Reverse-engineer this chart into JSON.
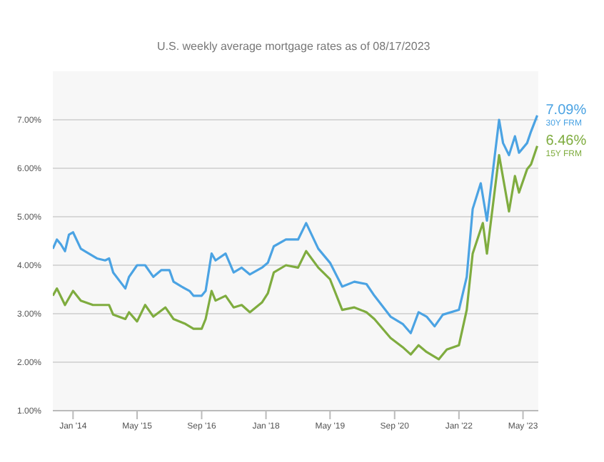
{
  "chart_data": {
    "type": "line",
    "subtitle": "U.S. weekly average mortgage rates as of 08/17/2023",
    "xlim": [
      "2013-08-01",
      "2023-08-25"
    ],
    "xticks": [
      {
        "value": "2014-01-01",
        "label": "Jan '14"
      },
      {
        "value": "2015-05-01",
        "label": "May '15"
      },
      {
        "value": "2016-09-01",
        "label": "Sep '16"
      },
      {
        "value": "2018-01-01",
        "label": "Jan '18"
      },
      {
        "value": "2019-05-01",
        "label": "May '19"
      },
      {
        "value": "2020-09-01",
        "label": "Sep '20"
      },
      {
        "value": "2022-01-01",
        "label": "Jan '22"
      },
      {
        "value": "2023-05-01",
        "label": "May '23"
      }
    ],
    "ylim": [
      1,
      8
    ],
    "yticks": [
      {
        "value": 1,
        "label": "1.00%"
      },
      {
        "value": 2,
        "label": "2.00%"
      },
      {
        "value": 3,
        "label": "3.00%"
      },
      {
        "value": 4,
        "label": "4.00%"
      },
      {
        "value": 5,
        "label": "5.00%"
      },
      {
        "value": 6,
        "label": "6.00%"
      },
      {
        "value": 7,
        "label": "7.00%"
      }
    ],
    "grid": "y",
    "marker": "none",
    "line_style": "solid",
    "series": [
      {
        "name": "30Y FRM",
        "color": "#4ba3e3",
        "x": [
          "2013-08-01",
          "2013-09-01",
          "2013-10-01",
          "2013-11-01",
          "2013-12-01",
          "2014-01-01",
          "2014-03-01",
          "2014-04-01",
          "2014-07-01",
          "2014-09-01",
          "2014-10-01",
          "2014-11-01",
          "2015-02-01",
          "2015-03-01",
          "2015-05-01",
          "2015-07-01",
          "2015-09-01",
          "2015-11-01",
          "2016-01-01",
          "2016-02-01",
          "2016-04-01",
          "2016-06-01",
          "2016-07-01",
          "2016-09-01",
          "2016-10-01",
          "2016-11-15",
          "2016-12-15",
          "2017-03-01",
          "2017-05-01",
          "2017-07-01",
          "2017-09-01",
          "2017-12-01",
          "2018-01-15",
          "2018-03-01",
          "2018-06-01",
          "2018-09-01",
          "2018-11-01",
          "2019-02-01",
          "2019-05-01",
          "2019-08-01",
          "2019-11-01",
          "2020-02-01",
          "2020-04-01",
          "2020-08-01",
          "2020-11-01",
          "2021-01-01",
          "2021-03-01",
          "2021-05-01",
          "2021-07-01",
          "2021-09-01",
          "2022-01-01",
          "2022-03-01",
          "2022-04-15",
          "2022-06-15",
          "2022-08-01",
          "2022-11-01",
          "2022-12-01",
          "2023-01-15",
          "2023-03-01",
          "2023-04-01",
          "2023-06-01",
          "2023-07-01",
          "2023-08-17"
        ],
        "values": [
          4.34,
          4.53,
          4.43,
          4.29,
          4.63,
          4.68,
          4.34,
          4.29,
          4.14,
          4.1,
          4.14,
          3.85,
          3.52,
          3.76,
          4.0,
          4.0,
          3.76,
          3.9,
          3.9,
          3.66,
          3.56,
          3.47,
          3.37,
          3.37,
          3.47,
          4.24,
          4.1,
          4.24,
          3.85,
          3.95,
          3.81,
          3.95,
          4.05,
          4.39,
          4.53,
          4.53,
          4.87,
          4.34,
          4.05,
          3.56,
          3.66,
          3.61,
          3.37,
          2.94,
          2.79,
          2.6,
          3.03,
          2.94,
          2.74,
          2.98,
          3.08,
          3.76,
          5.16,
          5.69,
          4.92,
          7.0,
          6.52,
          6.27,
          6.66,
          6.32,
          6.52,
          6.76,
          7.09
        ],
        "value_labels": [
          null,
          null,
          null,
          null,
          null,
          null,
          null,
          null,
          null,
          null,
          null,
          null,
          null,
          null,
          null,
          null,
          null,
          null,
          null,
          null,
          null,
          null,
          null,
          null,
          null,
          null,
          null,
          null,
          null,
          null,
          null,
          null,
          null,
          null,
          null,
          null,
          null,
          null,
          null,
          null,
          null,
          null,
          null,
          null,
          null,
          null,
          null,
          null,
          null,
          null,
          null,
          null,
          null,
          null,
          null,
          null,
          null,
          null,
          null,
          null,
          null,
          null,
          "7.09%"
        ]
      },
      {
        "name": "15Y FRM",
        "color": "#7fac3f",
        "x": [
          "2013-08-01",
          "2013-09-01",
          "2013-11-01",
          "2014-01-01",
          "2014-03-01",
          "2014-06-01",
          "2014-10-01",
          "2014-11-01",
          "2015-02-01",
          "2015-03-01",
          "2015-05-01",
          "2015-07-01",
          "2015-09-01",
          "2015-12-01",
          "2016-02-01",
          "2016-05-01",
          "2016-07-01",
          "2016-09-01",
          "2016-10-01",
          "2016-11-15",
          "2016-12-15",
          "2017-03-01",
          "2017-05-01",
          "2017-07-01",
          "2017-09-01",
          "2017-12-01",
          "2018-01-15",
          "2018-03-01",
          "2018-06-01",
          "2018-09-01",
          "2018-11-01",
          "2019-02-01",
          "2019-05-01",
          "2019-08-01",
          "2019-11-01",
          "2020-02-01",
          "2020-04-01",
          "2020-08-01",
          "2020-11-01",
          "2021-01-01",
          "2021-03-01",
          "2021-05-01",
          "2021-08-01",
          "2021-10-01",
          "2022-01-01",
          "2022-03-01",
          "2022-04-15",
          "2022-07-01",
          "2022-08-01",
          "2022-11-01",
          "2023-01-15",
          "2023-03-01",
          "2023-04-01",
          "2023-06-01",
          "2023-07-01",
          "2023-08-17"
        ],
        "values": [
          3.37,
          3.52,
          3.18,
          3.47,
          3.27,
          3.18,
          3.18,
          2.98,
          2.89,
          3.03,
          2.84,
          3.18,
          2.94,
          3.13,
          2.89,
          2.79,
          2.69,
          2.69,
          2.89,
          3.47,
          3.27,
          3.37,
          3.13,
          3.18,
          3.03,
          3.23,
          3.42,
          3.85,
          4.0,
          3.95,
          4.29,
          3.95,
          3.71,
          3.08,
          3.13,
          3.03,
          2.89,
          2.5,
          2.31,
          2.16,
          2.35,
          2.21,
          2.06,
          2.26,
          2.35,
          3.08,
          4.24,
          4.87,
          4.24,
          6.27,
          5.11,
          5.84,
          5.5,
          5.98,
          6.08,
          6.46
        ],
        "value_labels": [
          null,
          null,
          null,
          null,
          null,
          null,
          null,
          null,
          null,
          null,
          null,
          null,
          null,
          null,
          null,
          null,
          null,
          null,
          null,
          null,
          null,
          null,
          null,
          null,
          null,
          null,
          null,
          null,
          null,
          null,
          null,
          null,
          null,
          null,
          null,
          null,
          null,
          null,
          null,
          null,
          null,
          null,
          null,
          null,
          null,
          null,
          null,
          null,
          null,
          null,
          null,
          null,
          null,
          null,
          null,
          "6.46%"
        ]
      }
    ]
  }
}
